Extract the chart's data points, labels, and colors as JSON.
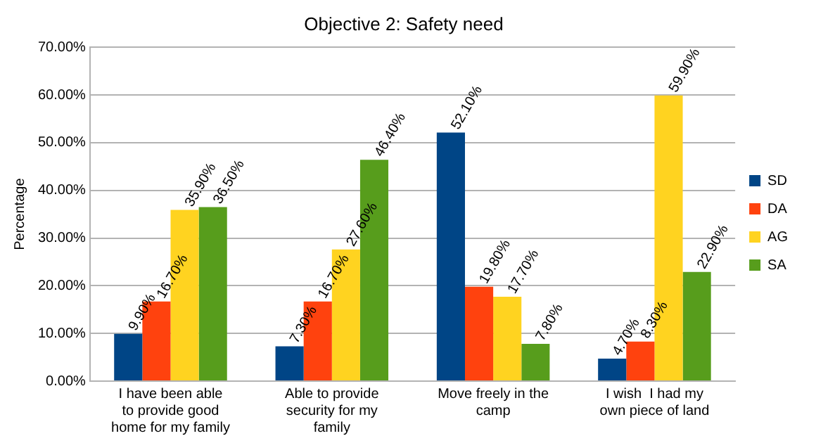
{
  "chart_data": {
    "type": "bar",
    "title": "Objective 2: Safety need",
    "ylabel": "Percentage",
    "categories": [
      "I have been able to provide good home for my family",
      "Able to provide security for my family",
      "Move freely in the camp",
      "I wish  I had my own piece of land"
    ],
    "series": [
      {
        "name": "SD",
        "color": "#004586",
        "values": [
          9.9,
          7.3,
          52.1,
          4.7
        ],
        "value_labels": [
          "9.90%",
          "7.30%",
          "52.10%",
          "4.70%"
        ]
      },
      {
        "name": "DA",
        "color": "#ff420e",
        "values": [
          16.7,
          16.7,
          19.8,
          8.3
        ],
        "value_labels": [
          "16.70%",
          "16.70%",
          "19.80%",
          "8.30%"
        ]
      },
      {
        "name": "AG",
        "color": "#ffd320",
        "values": [
          35.9,
          27.6,
          17.7,
          59.9
        ],
        "value_labels": [
          "35.90%",
          "27.60%",
          "17.70%",
          "59.90%"
        ]
      },
      {
        "name": "SA",
        "color": "#579d1c",
        "values": [
          36.5,
          46.4,
          7.8,
          22.9
        ],
        "value_labels": [
          "36.50%",
          "46.40%",
          "7.80%",
          "22.90%"
        ]
      }
    ],
    "ylim": [
      0,
      70
    ],
    "yticks": [
      {
        "value": 0,
        "label": "0.00%"
      },
      {
        "value": 10,
        "label": "10.00%"
      },
      {
        "value": 20,
        "label": "20.00%"
      },
      {
        "value": 30,
        "label": "30.00%"
      },
      {
        "value": 40,
        "label": "40.00%"
      },
      {
        "value": 50,
        "label": "50.00%"
      },
      {
        "value": 60,
        "label": "60.00%"
      },
      {
        "value": 70,
        "label": "70.00%"
      }
    ],
    "grid": "y",
    "legend": "right"
  }
}
